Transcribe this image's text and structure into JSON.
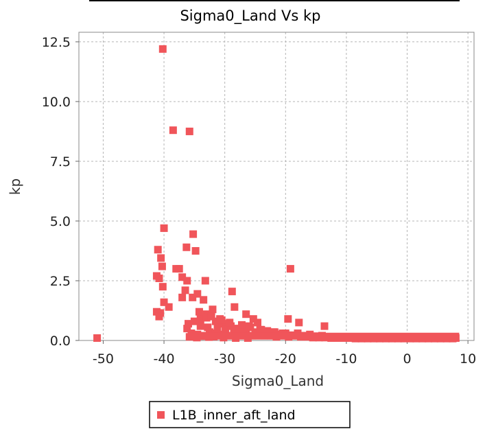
{
  "chart_data": {
    "type": "scatter",
    "title": "Sigma0_Land Vs kp",
    "xlabel": "Sigma0_Land",
    "ylabel": "kp",
    "xlim": [
      -54,
      11
    ],
    "ylim": [
      0,
      12.9
    ],
    "xticks": [
      -50,
      -40,
      -30,
      -20,
      -10,
      0,
      10
    ],
    "yticks": [
      0.0,
      2.5,
      5.0,
      7.5,
      10.0,
      12.5
    ],
    "xtick_labels": [
      "-50",
      "-40",
      "-30",
      "-20",
      "-10",
      "0",
      "10"
    ],
    "ytick_labels": [
      "0.0",
      "2.5",
      "5.0",
      "7.5",
      "10.0",
      "12.5"
    ],
    "grid": true,
    "legend_position": "bottom-center",
    "series": [
      {
        "name": "L1B_inner_aft_land",
        "color": "#f0555a",
        "marker": "square",
        "x": [
          -51.0,
          -40.2,
          -38.5,
          -35.8,
          -40.0,
          -41.0,
          -40.5,
          -36.3,
          -35.2,
          -34.8,
          -41.2,
          -40.8,
          -40.3,
          -38.0,
          -37.5,
          -37.0,
          -36.2,
          -39.2,
          -40.2,
          -40.0,
          -41.2,
          -40.6,
          -40.8,
          -35.3,
          -36.5,
          -37.0,
          -33.2,
          -34.5,
          -33.5,
          -32.0,
          -28.8,
          -28.4,
          -26.5,
          -25.3,
          -24.6,
          -19.2,
          -19.6,
          -17.8,
          -13.6,
          -36.2,
          -34.0,
          -33.0,
          -31.5,
          -30.0,
          -29.5,
          -27.8,
          -26.0,
          -24.0,
          -22.0,
          -20.0,
          -18.0,
          -16.0,
          -14.0,
          -12.0,
          -10.0,
          -8.0,
          -6.0,
          -4.0,
          -2.0,
          0.0,
          2.0,
          4.0,
          6.0,
          8.0,
          -35.5,
          -34.5,
          -33.5,
          -32.5,
          -31.5,
          -30.5,
          -29.5,
          -28.5,
          -27.5,
          -26.5,
          -25.5,
          -24.5,
          -23.5,
          -22.5,
          -21.5,
          -20.5,
          -19.5,
          -18.5,
          -17.5,
          -16.5,
          -15.5,
          -14.5,
          -13.5,
          -12.5,
          -11.5,
          -10.5,
          -9.5,
          -8.5,
          -7.5,
          -6.5,
          -5.5,
          -4.5,
          -3.5,
          -2.5,
          -1.5,
          -0.5,
          0.5,
          1.5,
          2.5,
          3.5,
          4.5,
          5.5,
          6.5,
          7.5,
          -34.0,
          -32.8,
          -31.2,
          -29.9,
          -28.0,
          -26.8,
          -25.0,
          -23.2,
          -21.0,
          -19.0,
          -17.0,
          -15.0,
          -13.0,
          -11.0,
          -9.0,
          -7.0,
          -5.0,
          -3.0,
          -1.0,
          1.0,
          3.0,
          5.0,
          7.0,
          -36.0,
          -35.0,
          -33.0,
          -31.0,
          -30.5,
          -29.0,
          -27.0,
          -34.2,
          -32.2,
          -30.8,
          -29.2,
          -27.2,
          -25.8,
          -24.2,
          -23.0,
          -21.8,
          -20.5,
          -35.8,
          -34.6,
          -33.8,
          -32.6,
          -31.8,
          -30.2,
          -28.2,
          -26.2
        ],
        "y": [
          0.1,
          12.2,
          8.8,
          8.75,
          4.7,
          3.8,
          3.45,
          3.9,
          4.45,
          3.75,
          2.7,
          2.6,
          3.1,
          3.0,
          3.0,
          2.65,
          2.5,
          1.4,
          2.25,
          1.6,
          1.2,
          1.15,
          1.0,
          1.8,
          2.1,
          1.8,
          2.5,
          1.95,
          1.7,
          1.3,
          2.05,
          1.4,
          1.1,
          0.9,
          0.75,
          3.0,
          0.9,
          0.75,
          0.6,
          0.5,
          0.9,
          1.1,
          0.8,
          0.7,
          0.6,
          0.5,
          0.6,
          0.45,
          0.35,
          0.3,
          0.3,
          0.25,
          0.2,
          0.15,
          0.15,
          0.12,
          0.1,
          0.1,
          0.1,
          0.1,
          0.1,
          0.1,
          0.1,
          0.1,
          0.3,
          0.25,
          0.2,
          0.35,
          0.3,
          0.25,
          0.2,
          0.3,
          0.2,
          0.25,
          0.2,
          0.3,
          0.2,
          0.2,
          0.15,
          0.2,
          0.15,
          0.2,
          0.15,
          0.15,
          0.12,
          0.12,
          0.12,
          0.1,
          0.1,
          0.1,
          0.1,
          0.08,
          0.08,
          0.08,
          0.08,
          0.08,
          0.08,
          0.08,
          0.08,
          0.08,
          0.08,
          0.08,
          0.08,
          0.08,
          0.08,
          0.08,
          0.08,
          0.08,
          0.6,
          0.55,
          0.5,
          0.45,
          0.4,
          0.4,
          0.35,
          0.3,
          0.25,
          0.22,
          0.2,
          0.18,
          0.15,
          0.13,
          0.12,
          0.1,
          0.1,
          0.1,
          0.1,
          0.1,
          0.1,
          0.1,
          0.1,
          0.7,
          0.8,
          0.95,
          0.7,
          0.85,
          0.6,
          0.5,
          1.2,
          1.0,
          0.9,
          0.75,
          0.65,
          0.55,
          0.45,
          0.4,
          0.35,
          0.3,
          0.15,
          0.12,
          0.18,
          0.14,
          0.16,
          0.12,
          0.1,
          0.1
        ]
      }
    ]
  }
}
